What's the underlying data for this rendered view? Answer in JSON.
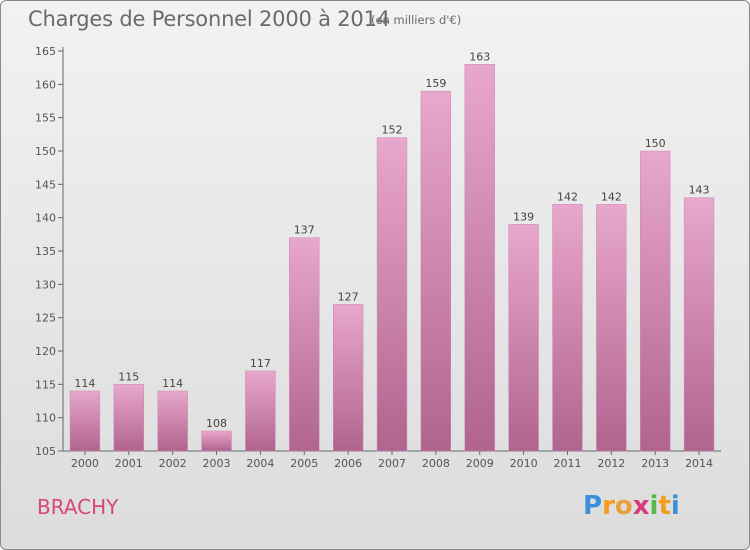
{
  "chart_data": {
    "type": "bar",
    "title": "Charges de Personnel 2000 à 2014",
    "subtitle": "(en milliers d'€)",
    "categories": [
      "2000",
      "2001",
      "2002",
      "2003",
      "2004",
      "2005",
      "2006",
      "2007",
      "2008",
      "2009",
      "2010",
      "2011",
      "2012",
      "2013",
      "2014"
    ],
    "values": [
      114,
      115,
      114,
      108,
      117,
      137,
      127,
      152,
      159,
      163,
      139,
      142,
      142,
      150,
      143
    ],
    "ylim": [
      105,
      165
    ],
    "yticks": [
      105,
      110,
      115,
      120,
      125,
      130,
      135,
      140,
      145,
      150,
      155,
      160,
      165
    ],
    "xlabel": "",
    "ylabel": "",
    "grid": false,
    "bar_color_top": "#e8a7cd",
    "bar_color_bottom": "#b0648f"
  },
  "commune": "BRACHY",
  "logo": {
    "letters": [
      "P",
      "r",
      "o",
      "x",
      "i",
      "t",
      "i"
    ],
    "colors": [
      "#3c8fd8",
      "#f39c1f",
      "#e8a13a",
      "#d93a7a",
      "#5ab84a",
      "#f39c1f",
      "#3c8fd8"
    ]
  }
}
